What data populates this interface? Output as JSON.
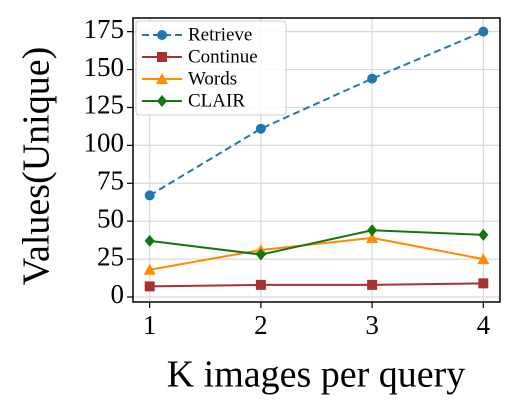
{
  "chart_data": {
    "type": "line",
    "x_label": "K images per query",
    "y_label": "Values(Unique)",
    "x": [
      1,
      2,
      3,
      4
    ],
    "series": [
      {
        "name": "Retrieve",
        "color": "#1f77b4",
        "marker": "circle",
        "linestyle": "dashed",
        "values": [
          67,
          111,
          144,
          175
        ]
      },
      {
        "name": "Continue",
        "color": "#a83232",
        "marker": "square",
        "linestyle": "solid",
        "values": [
          7,
          8,
          8,
          9
        ]
      },
      {
        "name": "Words",
        "color": "#ff8c00",
        "marker": "triangle",
        "linestyle": "solid",
        "values": [
          18,
          31,
          39,
          25
        ]
      },
      {
        "name": "CLAIR",
        "color": "#117711",
        "marker": "diamond",
        "linestyle": "solid",
        "values": [
          37,
          28,
          44,
          41
        ]
      }
    ],
    "xlim": [
      0.85,
      4.15
    ],
    "xticks": [
      1,
      2,
      3,
      4
    ],
    "ylim": [
      -3.3,
      184
    ],
    "yticks": [
      0,
      25,
      50,
      75,
      100,
      125,
      150,
      175
    ],
    "grid": true,
    "legend": "upper-left"
  }
}
